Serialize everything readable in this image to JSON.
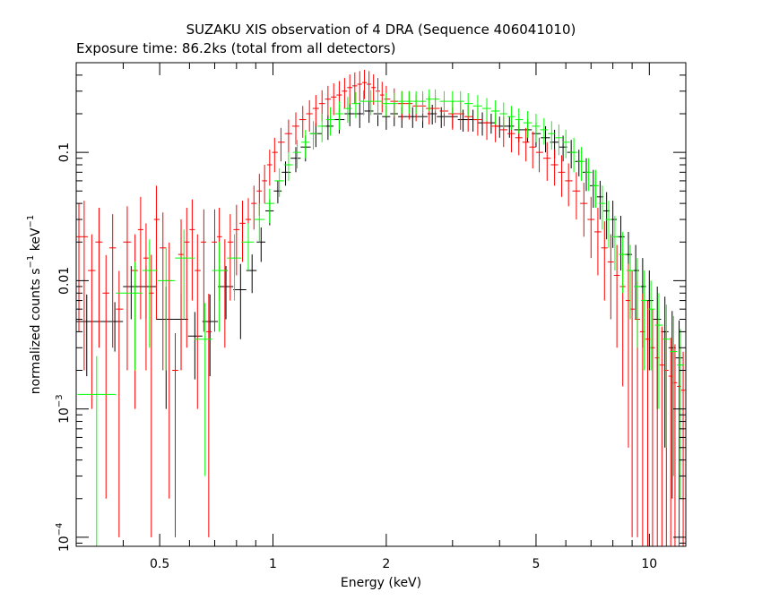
{
  "chart_data": {
    "type": "scatter",
    "title": "SUZAKU XIS observation of 4 DRA (Sequence 406041010)",
    "subtitle": "Exposure time: 86.2ks (total from all detectors)",
    "xlabel": "Energy (keV)",
    "ylabel": {
      "base": "normalized counts s",
      "exp1": "−1",
      "mid": " keV",
      "exp2": "−1"
    },
    "x_scale": "log",
    "y_scale": "log",
    "xlim": [
      0.3,
      12.5
    ],
    "ylim": [
      8.5e-05,
      0.5
    ],
    "grid": false,
    "x_ticks": [
      {
        "value": 0.5,
        "label": "0.5"
      },
      {
        "value": 1,
        "label": "1"
      },
      {
        "value": 2,
        "label": "2"
      },
      {
        "value": 5,
        "label": "5"
      },
      {
        "value": 10,
        "label": "10"
      }
    ],
    "y_ticks": [
      {
        "value": 0.0001,
        "base": "10",
        "exp": "−4"
      },
      {
        "value": 0.001,
        "base": "10",
        "exp": "−3"
      },
      {
        "value": 0.01,
        "base": "0.01",
        "exp": ""
      },
      {
        "value": 0.1,
        "base": "0.1",
        "exp": ""
      }
    ],
    "series": [
      {
        "color": "#000000",
        "points": [
          [
            0.32,
            0.0048,
            0.003
          ],
          [
            0.38,
            0.0048,
            0.002
          ],
          [
            0.42,
            0.009,
            0.004
          ],
          [
            0.46,
            0.009,
            0.004
          ],
          [
            0.52,
            0.005,
            0.004
          ],
          [
            0.57,
            0.005,
            0.003
          ],
          [
            0.62,
            0.0037,
            0.002
          ],
          [
            0.68,
            0.0048,
            0.003
          ],
          [
            0.75,
            0.009,
            0.004
          ],
          [
            0.82,
            0.0085,
            0.005
          ],
          [
            0.88,
            0.012,
            0.004
          ],
          [
            0.93,
            0.02,
            0.006
          ],
          [
            0.98,
            0.035,
            0.008
          ],
          [
            1.03,
            0.05,
            0.01
          ],
          [
            1.08,
            0.07,
            0.015
          ],
          [
            1.15,
            0.09,
            0.02
          ],
          [
            1.22,
            0.11,
            0.025
          ],
          [
            1.3,
            0.14,
            0.03
          ],
          [
            1.4,
            0.16,
            0.035
          ],
          [
            1.5,
            0.18,
            0.04
          ],
          [
            1.6,
            0.2,
            0.04
          ],
          [
            1.7,
            0.2,
            0.045
          ],
          [
            1.8,
            0.21,
            0.04
          ],
          [
            1.9,
            0.2,
            0.04
          ],
          [
            2.0,
            0.19,
            0.04
          ],
          [
            2.1,
            0.2,
            0.04
          ],
          [
            2.2,
            0.19,
            0.035
          ],
          [
            2.35,
            0.19,
            0.035
          ],
          [
            2.5,
            0.19,
            0.035
          ],
          [
            2.65,
            0.2,
            0.035
          ],
          [
            2.8,
            0.19,
            0.035
          ],
          [
            3.0,
            0.19,
            0.035
          ],
          [
            3.2,
            0.18,
            0.035
          ],
          [
            3.4,
            0.18,
            0.035
          ],
          [
            3.6,
            0.17,
            0.035
          ],
          [
            3.8,
            0.17,
            0.03
          ],
          [
            4.0,
            0.16,
            0.03
          ],
          [
            4.25,
            0.16,
            0.03
          ],
          [
            4.5,
            0.15,
            0.03
          ],
          [
            4.75,
            0.15,
            0.03
          ],
          [
            5.0,
            0.14,
            0.03
          ],
          [
            5.3,
            0.13,
            0.03
          ],
          [
            5.6,
            0.12,
            0.03
          ],
          [
            5.9,
            0.11,
            0.025
          ],
          [
            6.2,
            0.1,
            0.025
          ],
          [
            6.5,
            0.085,
            0.02
          ],
          [
            6.8,
            0.07,
            0.02
          ],
          [
            7.1,
            0.055,
            0.018
          ],
          [
            7.4,
            0.045,
            0.015
          ],
          [
            7.7,
            0.035,
            0.014
          ],
          [
            8.0,
            0.03,
            0.012
          ],
          [
            8.4,
            0.022,
            0.01
          ],
          [
            8.8,
            0.016,
            0.008
          ],
          [
            9.2,
            0.012,
            0.007
          ],
          [
            9.6,
            0.009,
            0.006
          ],
          [
            10.0,
            0.007,
            0.005
          ],
          [
            10.5,
            0.005,
            0.004
          ],
          [
            11.0,
            0.004,
            0.0035
          ],
          [
            11.5,
            0.003,
            0.0028
          ],
          [
            12.0,
            0.0025,
            0.0024
          ]
        ]
      },
      {
        "color": "#ff0000",
        "points": [
          [
            0.305,
            0.022,
            0.018
          ],
          [
            0.315,
            0.022,
            0.02
          ],
          [
            0.33,
            0.012,
            0.011
          ],
          [
            0.345,
            0.02,
            0.017
          ],
          [
            0.36,
            0.008,
            0.0078
          ],
          [
            0.375,
            0.018,
            0.015
          ],
          [
            0.39,
            0.006,
            0.0059
          ],
          [
            0.41,
            0.02,
            0.018
          ],
          [
            0.43,
            0.012,
            0.011
          ],
          [
            0.445,
            0.025,
            0.02
          ],
          [
            0.46,
            0.015,
            0.013
          ],
          [
            0.475,
            0.008,
            0.0079
          ],
          [
            0.49,
            0.03,
            0.025
          ],
          [
            0.51,
            0.018,
            0.016
          ],
          [
            0.53,
            0.01,
            0.0098
          ],
          [
            0.55,
            0.002,
            0.0019
          ],
          [
            0.57,
            0.016,
            0.014
          ],
          [
            0.59,
            0.02,
            0.017
          ],
          [
            0.61,
            0.025,
            0.018
          ],
          [
            0.63,
            0.012,
            0.011
          ],
          [
            0.655,
            0.02,
            0.016
          ],
          [
            0.675,
            0.004,
            0.0039
          ],
          [
            0.7,
            0.02,
            0.016
          ],
          [
            0.72,
            0.022,
            0.015
          ],
          [
            0.745,
            0.012,
            0.009
          ],
          [
            0.77,
            0.02,
            0.013
          ],
          [
            0.8,
            0.025,
            0.014
          ],
          [
            0.83,
            0.028,
            0.014
          ],
          [
            0.86,
            0.03,
            0.014
          ],
          [
            0.89,
            0.04,
            0.015
          ],
          [
            0.92,
            0.05,
            0.018
          ],
          [
            0.95,
            0.06,
            0.02
          ],
          [
            0.98,
            0.08,
            0.025
          ],
          [
            1.01,
            0.1,
            0.03
          ],
          [
            1.05,
            0.12,
            0.035
          ],
          [
            1.1,
            0.14,
            0.04
          ],
          [
            1.15,
            0.16,
            0.045
          ],
          [
            1.2,
            0.18,
            0.05
          ],
          [
            1.25,
            0.2,
            0.055
          ],
          [
            1.3,
            0.22,
            0.06
          ],
          [
            1.35,
            0.24,
            0.065
          ],
          [
            1.4,
            0.26,
            0.07
          ],
          [
            1.45,
            0.27,
            0.075
          ],
          [
            1.5,
            0.28,
            0.08
          ],
          [
            1.55,
            0.3,
            0.08
          ],
          [
            1.6,
            0.32,
            0.085
          ],
          [
            1.65,
            0.33,
            0.09
          ],
          [
            1.7,
            0.34,
            0.09
          ],
          [
            1.75,
            0.35,
            0.09
          ],
          [
            1.8,
            0.34,
            0.09
          ],
          [
            1.85,
            0.32,
            0.085
          ],
          [
            1.9,
            0.3,
            0.08
          ],
          [
            1.95,
            0.28,
            0.075
          ],
          [
            2.0,
            0.26,
            0.07
          ],
          [
            2.1,
            0.25,
            0.065
          ],
          [
            2.2,
            0.24,
            0.06
          ],
          [
            2.3,
            0.24,
            0.06
          ],
          [
            2.4,
            0.23,
            0.055
          ],
          [
            2.5,
            0.23,
            0.055
          ],
          [
            2.6,
            0.22,
            0.055
          ],
          [
            2.7,
            0.22,
            0.05
          ],
          [
            2.85,
            0.21,
            0.05
          ],
          [
            3.0,
            0.2,
            0.05
          ],
          [
            3.15,
            0.2,
            0.05
          ],
          [
            3.3,
            0.19,
            0.045
          ],
          [
            3.5,
            0.18,
            0.045
          ],
          [
            3.7,
            0.17,
            0.045
          ],
          [
            3.9,
            0.16,
            0.04
          ],
          [
            4.1,
            0.15,
            0.04
          ],
          [
            4.3,
            0.14,
            0.04
          ],
          [
            4.5,
            0.13,
            0.035
          ],
          [
            4.7,
            0.12,
            0.035
          ],
          [
            4.9,
            0.11,
            0.035
          ],
          [
            5.1,
            0.1,
            0.03
          ],
          [
            5.35,
            0.09,
            0.03
          ],
          [
            5.6,
            0.08,
            0.025
          ],
          [
            5.85,
            0.07,
            0.025
          ],
          [
            6.1,
            0.06,
            0.022
          ],
          [
            6.4,
            0.05,
            0.02
          ],
          [
            6.7,
            0.04,
            0.018
          ],
          [
            7.0,
            0.03,
            0.015
          ],
          [
            7.3,
            0.024,
            0.013
          ],
          [
            7.6,
            0.018,
            0.011
          ],
          [
            7.9,
            0.014,
            0.009
          ],
          [
            8.2,
            0.011,
            0.008
          ],
          [
            8.5,
            0.009,
            0.0075
          ],
          [
            8.8,
            0.007,
            0.0065
          ],
          [
            9.0,
            0.006,
            0.0059
          ],
          [
            9.3,
            0.005,
            0.0049
          ],
          [
            9.6,
            0.004,
            0.00395
          ],
          [
            9.9,
            0.0035,
            0.00347
          ],
          [
            10.2,
            0.003,
            0.00298
          ],
          [
            10.5,
            0.0025,
            0.00249
          ],
          [
            10.8,
            0.0022,
            0.00219
          ],
          [
            11.1,
            0.002,
            0.00199
          ],
          [
            11.4,
            0.0018,
            0.00179
          ],
          [
            11.7,
            0.0016,
            0.00159
          ],
          [
            12.0,
            0.0015,
            0.00149
          ],
          [
            12.3,
            0.0014,
            0.00139
          ]
        ]
      },
      {
        "color": "#00ff00",
        "points": [
          [
            0.34,
            0.0013,
            0.00128
          ],
          [
            0.43,
            0.008,
            0.006
          ],
          [
            0.47,
            0.012,
            0.009
          ],
          [
            0.52,
            0.01,
            0.008
          ],
          [
            0.58,
            0.015,
            0.01
          ],
          [
            0.66,
            0.0035,
            0.0032
          ],
          [
            0.72,
            0.012,
            0.008
          ],
          [
            0.79,
            0.015,
            0.008
          ],
          [
            0.86,
            0.02,
            0.008
          ],
          [
            0.92,
            0.03,
            0.01
          ],
          [
            0.98,
            0.04,
            0.012
          ],
          [
            1.04,
            0.06,
            0.015
          ],
          [
            1.1,
            0.08,
            0.02
          ],
          [
            1.16,
            0.1,
            0.025
          ],
          [
            1.22,
            0.12,
            0.03
          ],
          [
            1.28,
            0.14,
            0.035
          ],
          [
            1.35,
            0.16,
            0.04
          ],
          [
            1.42,
            0.18,
            0.045
          ],
          [
            1.5,
            0.2,
            0.05
          ],
          [
            1.58,
            0.22,
            0.05
          ],
          [
            1.66,
            0.24,
            0.055
          ],
          [
            1.74,
            0.25,
            0.055
          ],
          [
            1.82,
            0.25,
            0.055
          ],
          [
            1.9,
            0.25,
            0.055
          ],
          [
            2.0,
            0.24,
            0.05
          ],
          [
            2.1,
            0.24,
            0.05
          ],
          [
            2.2,
            0.25,
            0.05
          ],
          [
            2.3,
            0.25,
            0.05
          ],
          [
            2.4,
            0.25,
            0.05
          ],
          [
            2.5,
            0.25,
            0.05
          ],
          [
            2.6,
            0.26,
            0.05
          ],
          [
            2.7,
            0.26,
            0.05
          ],
          [
            2.85,
            0.25,
            0.05
          ],
          [
            3.0,
            0.25,
            0.05
          ],
          [
            3.15,
            0.25,
            0.05
          ],
          [
            3.3,
            0.24,
            0.05
          ],
          [
            3.5,
            0.23,
            0.05
          ],
          [
            3.7,
            0.22,
            0.045
          ],
          [
            3.9,
            0.21,
            0.045
          ],
          [
            4.1,
            0.2,
            0.045
          ],
          [
            4.3,
            0.19,
            0.04
          ],
          [
            4.5,
            0.18,
            0.04
          ],
          [
            4.75,
            0.17,
            0.04
          ],
          [
            5.0,
            0.16,
            0.04
          ],
          [
            5.25,
            0.15,
            0.035
          ],
          [
            5.5,
            0.14,
            0.035
          ],
          [
            5.75,
            0.13,
            0.035
          ],
          [
            6.0,
            0.12,
            0.03
          ],
          [
            6.3,
            0.1,
            0.03
          ],
          [
            6.6,
            0.085,
            0.025
          ],
          [
            6.9,
            0.07,
            0.02
          ],
          [
            7.2,
            0.055,
            0.018
          ],
          [
            7.5,
            0.04,
            0.015
          ],
          [
            7.8,
            0.03,
            0.012
          ],
          [
            8.1,
            0.022,
            0.01
          ],
          [
            8.5,
            0.016,
            0.008
          ],
          [
            8.9,
            0.012,
            0.007
          ],
          [
            9.3,
            0.009,
            0.006
          ],
          [
            9.7,
            0.007,
            0.005
          ],
          [
            10.1,
            0.006,
            0.004
          ],
          [
            10.6,
            0.0045,
            0.0035
          ],
          [
            11.1,
            0.0035,
            0.003
          ],
          [
            11.6,
            0.0028,
            0.0025
          ],
          [
            12.1,
            0.0022,
            0.002
          ]
        ]
      }
    ]
  }
}
